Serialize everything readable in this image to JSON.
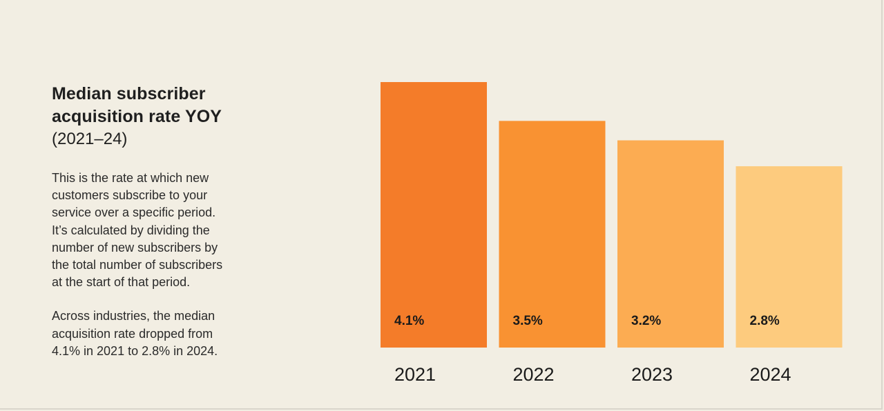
{
  "panel": {
    "title_line1": "Median subscriber",
    "title_line2": "acquisition rate YOY",
    "subtitle": "(2021–24)",
    "description": [
      "This is the rate at which new",
      "customers subscribe to your",
      "service over a specific period.",
      "It’s calculated by dividing the",
      "number of new subscribers by",
      "the total number of subscribers",
      "at the start of that period."
    ],
    "summary": [
      "Across industries, the median",
      "acquisition rate dropped from",
      "4.1% in 2021 to 2.8% in 2024."
    ]
  },
  "chart_data": {
    "type": "bar",
    "categories": [
      "2021",
      "2022",
      "2023",
      "2024"
    ],
    "values": [
      4.1,
      3.5,
      3.2,
      2.8
    ],
    "data_labels": [
      "4.1%",
      "3.5%",
      "3.2%",
      "2.8%"
    ],
    "unit": "%",
    "colors": [
      "#f47c29",
      "#f99232",
      "#fcac52",
      "#fdcb7e"
    ],
    "ylim": [
      0,
      4.1
    ],
    "grid": false,
    "legend": "none"
  }
}
